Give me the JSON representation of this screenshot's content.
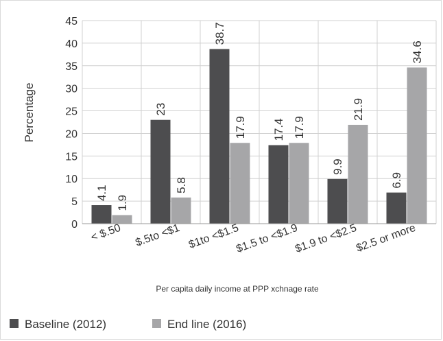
{
  "chart_data": {
    "type": "bar",
    "categories": [
      "< $.50",
      "$.5to <$1",
      "$1to <$1.5",
      "$1.5 to  <$1.9",
      "$1.9 to <$2.5",
      "$2.5 or more"
    ],
    "series": [
      {
        "name": "Baseline (2012)",
        "values": [
          4.1,
          23,
          38.7,
          17.4,
          9.9,
          6.9
        ],
        "labels": [
          "4.1",
          "23",
          "38.7",
          "17.4",
          "9.9",
          "6.9"
        ],
        "color": "#4d4d4f"
      },
      {
        "name": "End line (2016)",
        "values": [
          1.9,
          5.8,
          17.9,
          17.9,
          21.9,
          34.6
        ],
        "labels": [
          "1.9",
          "5.8",
          "17.9",
          "17.9",
          "21.9",
          "34.6"
        ],
        "color": "#a6a6a8"
      }
    ],
    "ylabel": "Percentage",
    "xlabel": "Per capita daily income at PPP xchnage rate",
    "ylim": [
      0,
      45
    ],
    "yticks": [
      0,
      5,
      10,
      15,
      20,
      25,
      30,
      35,
      40,
      45
    ],
    "grid": true,
    "legend_position": "bottom-left"
  }
}
